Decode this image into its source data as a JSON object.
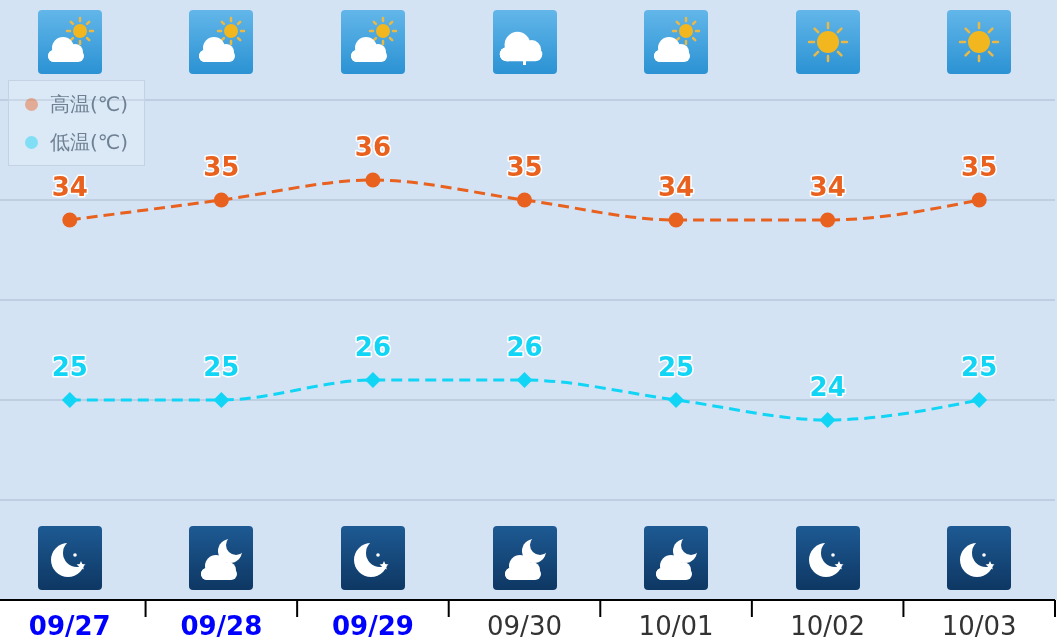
{
  "chart_data": {
    "type": "line",
    "categories": [
      "09/27",
      "09/28",
      "09/29",
      "09/30",
      "10/01",
      "10/02",
      "10/03"
    ],
    "series": [
      {
        "name": "高温(℃)",
        "color": "#e9611e",
        "marker": "circle",
        "values": [
          34,
          35,
          36,
          35,
          34,
          34,
          35
        ]
      },
      {
        "name": "低温(℃)",
        "color": "#12d5f5",
        "marker": "diamond",
        "values": [
          25,
          25,
          26,
          26,
          25,
          24,
          25
        ]
      }
    ],
    "ylim": [
      15,
      45
    ],
    "yticks": [
      {
        "value": 20,
        "label": null
      },
      {
        "value": 25,
        "label": null
      },
      {
        "value": 30,
        "label": null
      },
      {
        "value": 35,
        "label": null
      },
      {
        "value": 40,
        "label": null
      }
    ],
    "tick_labels": "x",
    "grid": "y",
    "legend": "top left",
    "line_style": "dashed",
    "data_labels": true
  }
}
